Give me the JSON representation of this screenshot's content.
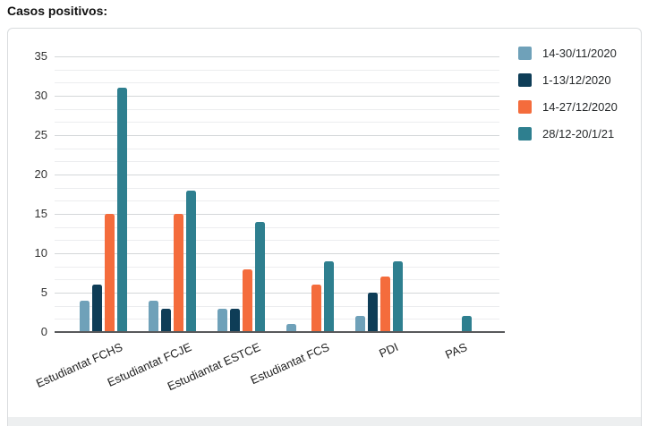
{
  "page": {
    "title": "Casos positivos:"
  },
  "chart_data": {
    "type": "bar",
    "title": "Casos positivos:",
    "categories": [
      "Estudiantat FCHS",
      "Estudiantat FCJE",
      "Estudiantat ESTCE",
      "Estudiantat FCS",
      "PDI",
      "PAS"
    ],
    "series": [
      {
        "name": "14-30/11/2020",
        "color": "#6FA1B9",
        "values": [
          4,
          4,
          3,
          1,
          2,
          0
        ]
      },
      {
        "name": "1-13/12/2020",
        "color": "#0E3D57",
        "values": [
          6,
          3,
          3,
          0,
          5,
          0
        ]
      },
      {
        "name": "14-27/12/2020",
        "color": "#F46C3C",
        "values": [
          15,
          15,
          8,
          6,
          7,
          0
        ]
      },
      {
        "name": "28/12-20/1/21",
        "color": "#2E7F8F",
        "values": [
          31,
          18,
          14,
          9,
          9,
          2
        ]
      }
    ],
    "xlabel": "",
    "ylabel": "",
    "ylim": [
      0,
      35
    ],
    "yticks": [
      0,
      5,
      10,
      15,
      20,
      25,
      30,
      35
    ],
    "grid": "horizontal, major every 5 with 2 minor lines between",
    "legend_position": "top-right"
  },
  "colors": {
    "axis_line": "#58595B",
    "grid_major": "#D4D7D9",
    "grid_minor": "#ECEDEF",
    "card_border": "#D9DCDE",
    "card_footer": "#EDEFF0",
    "title_text": "#111111",
    "tick_text": "#333333"
  }
}
